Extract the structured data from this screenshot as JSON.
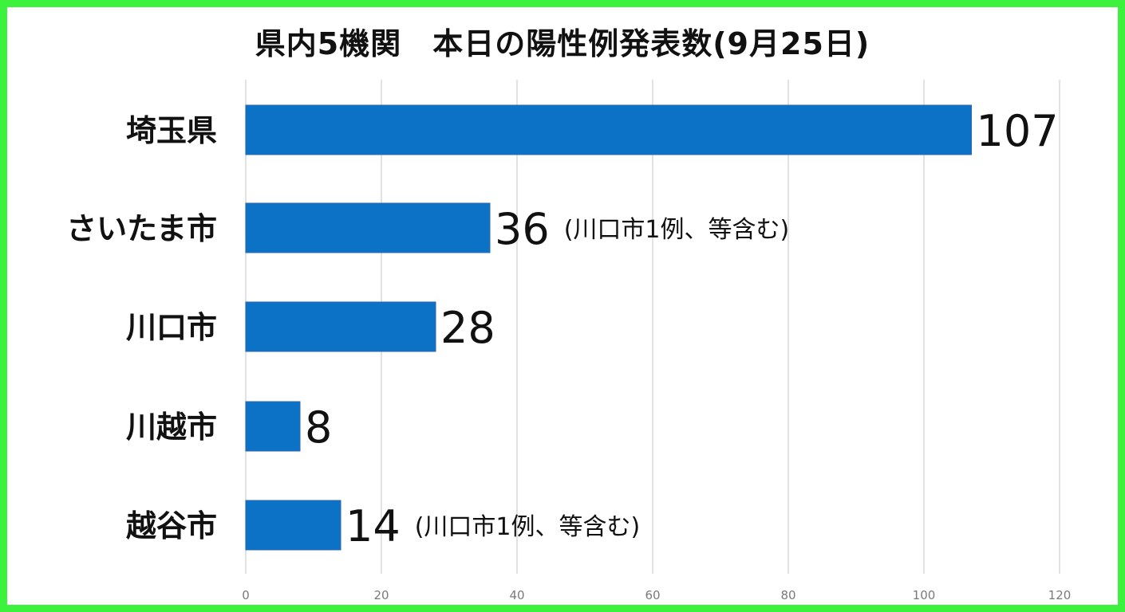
{
  "title": "県内5機関　本日の陽性例発表数(9月25日)",
  "colors": {
    "border": "#3cf23c",
    "bar": "#0b72c6",
    "grid": "#d9d9d9"
  },
  "chart_data": {
    "type": "bar",
    "orientation": "horizontal",
    "categories": [
      "埼玉県",
      "さいたま市",
      "川口市",
      "川越市",
      "越谷市"
    ],
    "values": [
      107,
      36,
      28,
      8,
      14
    ],
    "value_labels": [
      "107",
      "36",
      "28",
      "8",
      "14"
    ],
    "notes": [
      "",
      "(川口市1例、等含む)",
      "",
      "",
      "(川口市1例、等含む)"
    ],
    "xlim": [
      0,
      120
    ],
    "xticks": [
      0,
      20,
      40,
      60,
      80,
      100,
      120
    ],
    "grid": true,
    "legend": "none"
  }
}
